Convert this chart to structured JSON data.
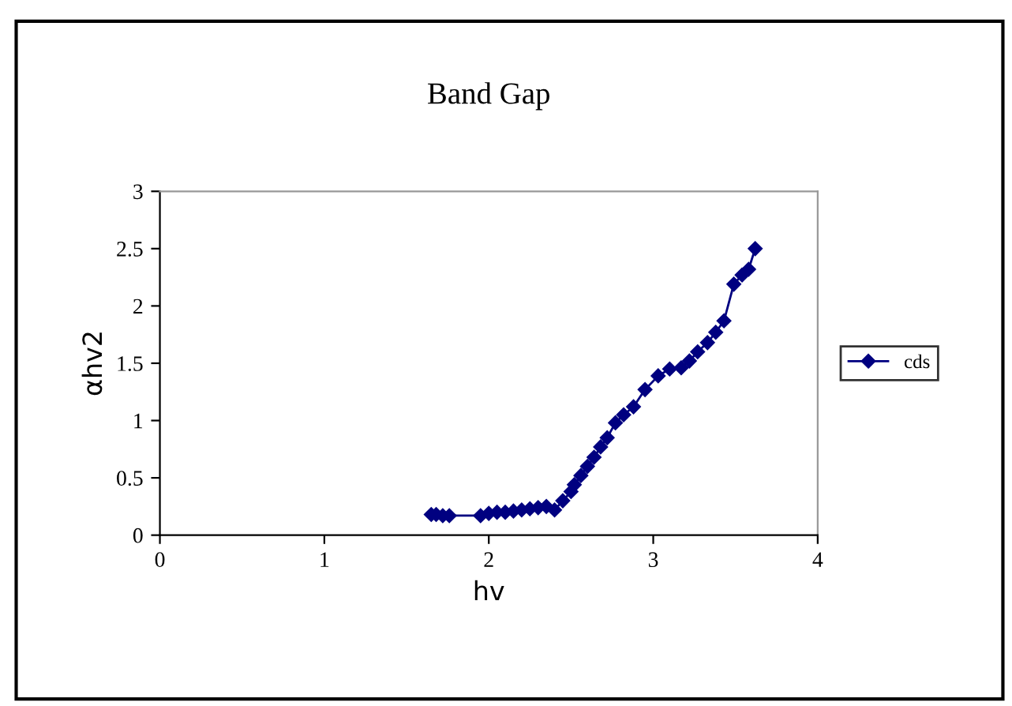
{
  "chart_data": {
    "type": "line",
    "title": "Band Gap",
    "xlabel": "hv",
    "ylabel": "αhv2",
    "xlim": [
      0,
      4
    ],
    "xticks": [
      0,
      1,
      2,
      3,
      4
    ],
    "ylim": [
      0,
      3
    ],
    "yticks": [
      0,
      0.5,
      1,
      1.5,
      2,
      2.5,
      3
    ],
    "grid": false,
    "legend": "right",
    "marker": "diamond",
    "line_style": "solid",
    "series": [
      {
        "name": "cds",
        "color": "#000080",
        "x": [
          1.65,
          1.68,
          1.72,
          1.76,
          1.95,
          2.0,
          2.05,
          2.1,
          2.15,
          2.2,
          2.25,
          2.3,
          2.35,
          2.4,
          2.45,
          2.5,
          2.52,
          2.56,
          2.6,
          2.64,
          2.68,
          2.72,
          2.77,
          2.82,
          2.88,
          2.95,
          3.03,
          3.1,
          3.17,
          3.22,
          3.27,
          3.33,
          3.38,
          3.43,
          3.49,
          3.54,
          3.58,
          3.62
        ],
        "values": [
          0.18,
          0.18,
          0.17,
          0.17,
          0.17,
          0.19,
          0.2,
          0.2,
          0.21,
          0.22,
          0.23,
          0.24,
          0.25,
          0.22,
          0.3,
          0.38,
          0.44,
          0.52,
          0.6,
          0.68,
          0.77,
          0.85,
          0.98,
          1.05,
          1.12,
          1.27,
          1.39,
          1.45,
          1.46,
          1.52,
          1.6,
          1.68,
          1.77,
          1.87,
          2.19,
          2.27,
          2.32,
          2.5
        ]
      }
    ]
  }
}
